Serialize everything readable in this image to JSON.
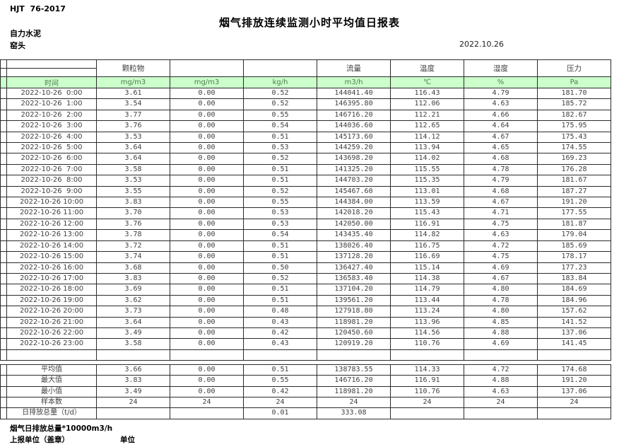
{
  "page": {
    "standard_code": "HJT  76-2017",
    "title": "烟气排放连续监测小时平均值日报表",
    "company": "自力水泥",
    "monitor_point": "窑头",
    "report_date": "2022.10.26"
  },
  "table": {
    "group_headers": [
      "颗粒物",
      "",
      "",
      "流量",
      "温度",
      "湿度",
      "压力"
    ],
    "unit_row": [
      "时间",
      "mg/m3",
      "mg/m3",
      "kg/h",
      "m3/h",
      "℃",
      "%",
      "Pa"
    ],
    "rows": [
      [
        "2022-10-26  0:00",
        "3.61",
        "0.00",
        "0.52",
        "144041.40",
        "116.43",
        "4.79",
        "181.70"
      ],
      [
        "2022-10-26  1:00",
        "3.54",
        "0.00",
        "0.52",
        "146395.80",
        "112.06",
        "4.63",
        "185.72"
      ],
      [
        "2022-10-26  2:00",
        "3.77",
        "0.00",
        "0.55",
        "146716.20",
        "112.21",
        "4.66",
        "182.67"
      ],
      [
        "2022-10-26  3:00",
        "3.76",
        "0.00",
        "0.54",
        "144036.60",
        "112.65",
        "4.64",
        "175.95"
      ],
      [
        "2022-10-26  4:00",
        "3.53",
        "0.00",
        "0.51",
        "145173.60",
        "114.12",
        "4.67",
        "175.43"
      ],
      [
        "2022-10-26  5:00",
        "3.64",
        "0.00",
        "0.53",
        "144259.20",
        "113.94",
        "4.65",
        "174.55"
      ],
      [
        "2022-10-26  6:00",
        "3.64",
        "0.00",
        "0.52",
        "143698.20",
        "114.02",
        "4.68",
        "169.23"
      ],
      [
        "2022-10-26  7:00",
        "3.58",
        "0.00",
        "0.51",
        "141325.20",
        "115.55",
        "4.78",
        "176.28"
      ],
      [
        "2022-10-26  8:00",
        "3.53",
        "0.00",
        "0.51",
        "144703.20",
        "115.35",
        "4.79",
        "181.67"
      ],
      [
        "2022-10-26  9:00",
        "3.55",
        "0.00",
        "0.52",
        "145467.60",
        "113.01",
        "4.68",
        "187.27"
      ],
      [
        "2022-10-26 10:00",
        "3.83",
        "0.00",
        "0.55",
        "144384.00",
        "113.59",
        "4.67",
        "191.20"
      ],
      [
        "2022-10-26 11:00",
        "3.70",
        "0.00",
        "0.53",
        "142018.20",
        "115.43",
        "4.71",
        "177.55"
      ],
      [
        "2022-10-26 12:00",
        "3.76",
        "0.00",
        "0.53",
        "142050.00",
        "116.91",
        "4.75",
        "181.87"
      ],
      [
        "2022-10-26 13:00",
        "3.78",
        "0.00",
        "0.54",
        "143435.40",
        "114.82",
        "4.63",
        "179.04"
      ],
      [
        "2022-10-26 14:00",
        "3.72",
        "0.00",
        "0.51",
        "138026.40",
        "116.75",
        "4.72",
        "185.69"
      ],
      [
        "2022-10-26 15:00",
        "3.74",
        "0.00",
        "0.51",
        "137128.20",
        "116.69",
        "4.75",
        "178.17"
      ],
      [
        "2022-10-26 16:00",
        "3.68",
        "0.00",
        "0.50",
        "136427.40",
        "115.14",
        "4.69",
        "177.23"
      ],
      [
        "2022-10-26 17:00",
        "3.83",
        "0.00",
        "0.52",
        "136583.40",
        "114.38",
        "4.67",
        "183.84"
      ],
      [
        "2022-10-26 18:00",
        "3.69",
        "0.00",
        "0.51",
        "137104.20",
        "114.79",
        "4.80",
        "184.69"
      ],
      [
        "2022-10-26 19:00",
        "3.62",
        "0.00",
        "0.51",
        "139561.20",
        "113.44",
        "4.78",
        "184.96"
      ],
      [
        "2022-10-26 20:00",
        "3.73",
        "0.00",
        "0.48",
        "127918.80",
        "113.24",
        "4.80",
        "157.62"
      ],
      [
        "2022-10-26 21:00",
        "3.64",
        "0.00",
        "0.43",
        "118981.20",
        "113.96",
        "4.85",
        "141.52"
      ],
      [
        "2022-10-26 22:00",
        "3.49",
        "0.00",
        "0.42",
        "120450.60",
        "114.56",
        "4.88",
        "137.06"
      ],
      [
        "2022-10-26 23:00",
        "3.58",
        "0.00",
        "0.43",
        "120919.20",
        "110.76",
        "4.69",
        "141.45"
      ]
    ],
    "summary_rows": [
      [
        "平均值",
        "3.66",
        "0.00",
        "0.51",
        "138783.55",
        "114.33",
        "4.72",
        "174.68"
      ],
      [
        "最大值",
        "3.83",
        "0.00",
        "0.55",
        "146716.20",
        "116.91",
        "4.88",
        "191.20"
      ],
      [
        "最小值",
        "3.49",
        "0.00",
        "0.42",
        "118981.20",
        "110.76",
        "4.63",
        "137.06"
      ],
      [
        "样本数",
        "24",
        "24",
        "24",
        "24",
        "24",
        "24",
        "24"
      ],
      [
        "日排放总量（t/d）",
        "",
        "",
        "0.01",
        "333.08",
        "",
        "",
        ""
      ]
    ]
  },
  "footer": {
    "note": "烟气日排放总量*10000m3/h",
    "report_unit_label": "上报单位（盖章）",
    "unit_label": "单位"
  },
  "colors": {
    "unit_row_green": "#ccffcc",
    "border": "#2b2b2b"
  }
}
